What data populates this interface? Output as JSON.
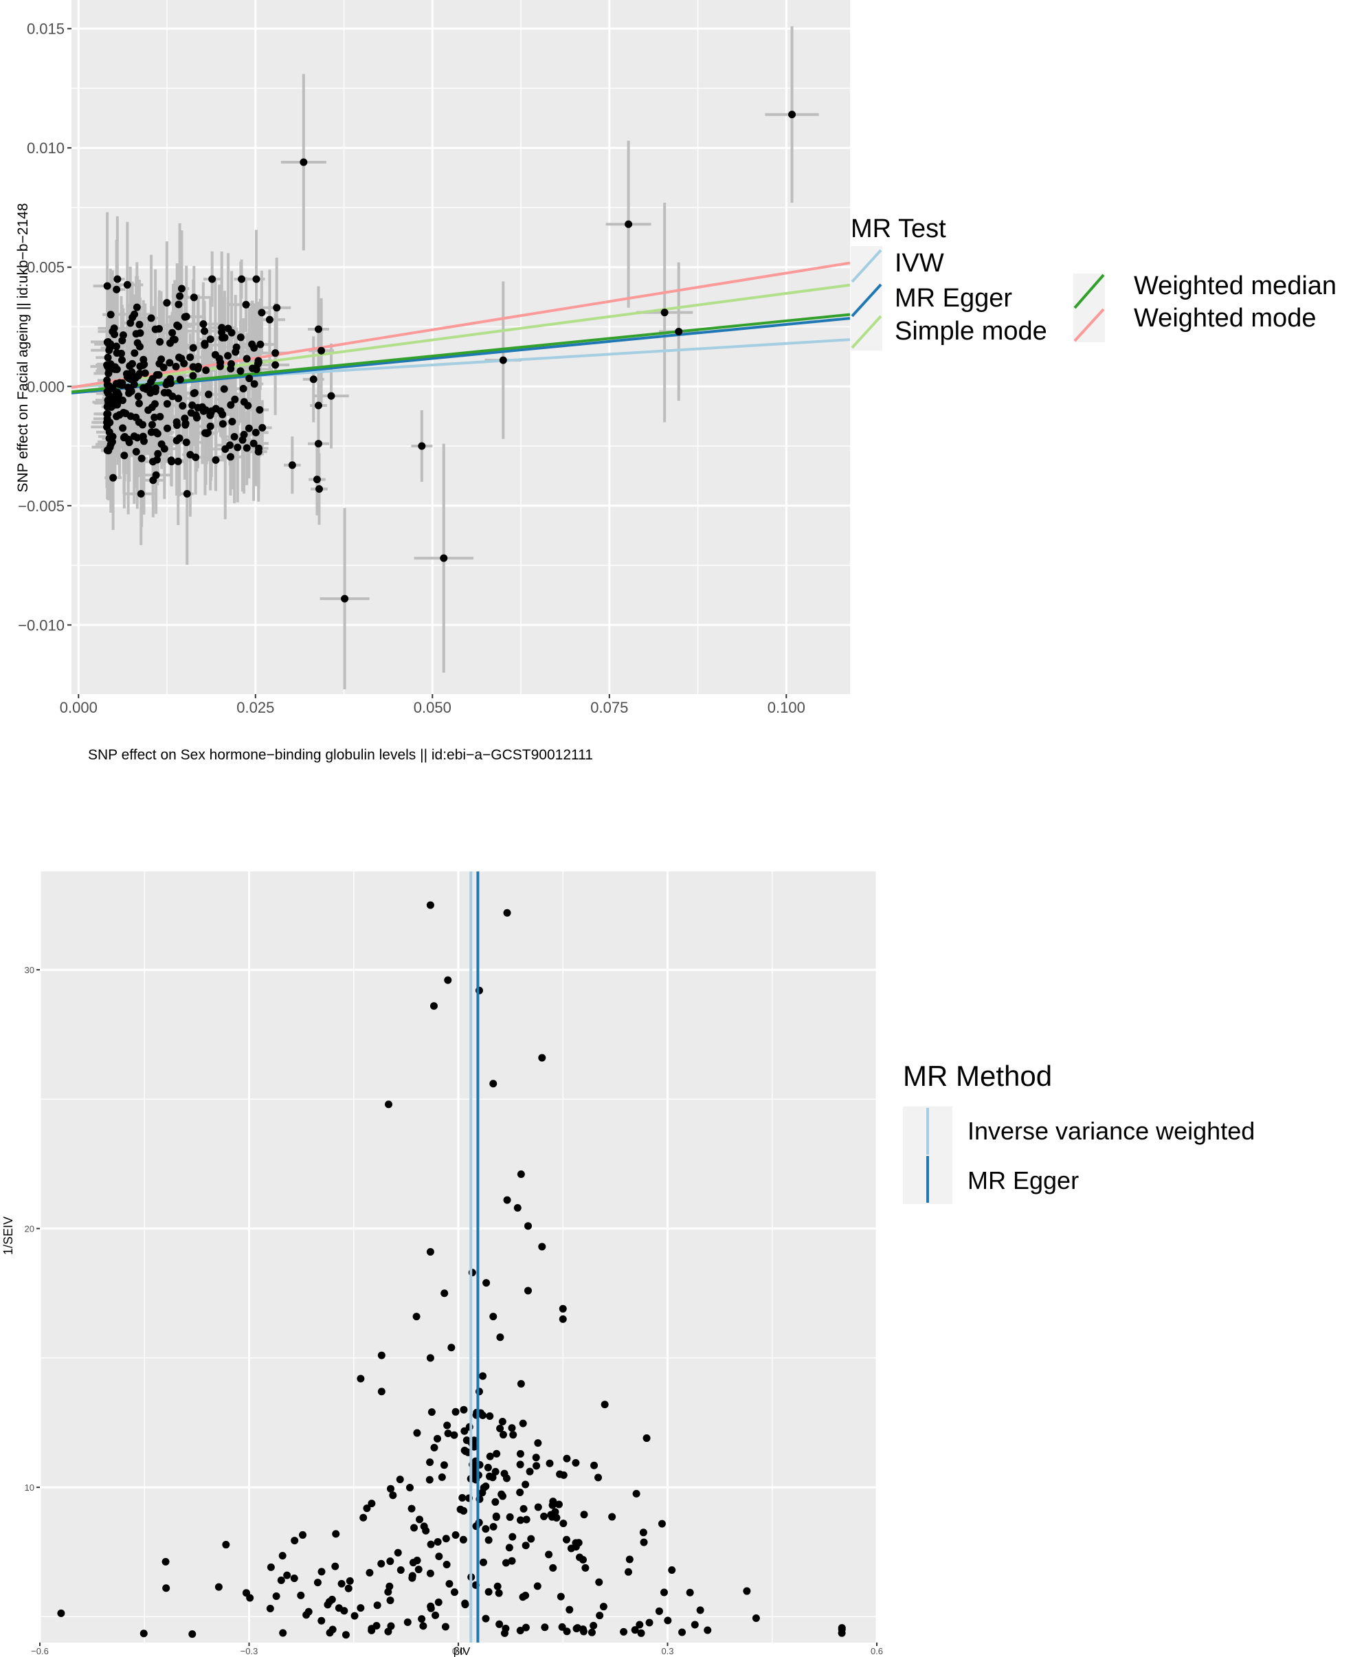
{
  "colors": {
    "panel_bg": "#EBEBEB",
    "grid": "#FFFFFF",
    "ivw": "#A6CEE3",
    "egger": "#1F78B4",
    "simple_mode": "#B2DF8A",
    "weighted_median": "#33A02C",
    "weighted_mode": "#FB9A99",
    "points": "#000000",
    "errorbars": "#BDBDBD"
  },
  "chart_data": [
    {
      "type": "scatter",
      "title": "",
      "xlabel": "SNP effect on Sex hormone−binding globulin levels || id:ebi−a−GCST90012111",
      "ylabel": "SNP effect on Facial ageing || id:ukb−b−2148",
      "xlim": [
        -0.001,
        0.109
      ],
      "ylim": [
        -0.0129,
        0.0162
      ],
      "x_ticks": [
        0,
        0.025,
        0.05,
        0.075,
        0.1
      ],
      "x_tick_labels": [
        "0.000",
        "0.025",
        "0.050",
        "0.075",
        "0.100"
      ],
      "y_ticks": [
        -0.01,
        -0.005,
        0,
        0.005,
        0.01,
        0.015
      ],
      "y_tick_labels": [
        "−0.010",
        "−0.005",
        "0.000",
        "0.005",
        "0.010",
        "0.015"
      ],
      "legend_title": "MR Test",
      "legend_position": "right",
      "legend_entries": [
        "IVW",
        "MR Egger",
        "Simple mode",
        "Weighted median",
        "Weighted mode"
      ],
      "regression_lines": [
        {
          "name": "IVW",
          "intercept": 0,
          "slope": 0.018,
          "color_key": "ivw"
        },
        {
          "name": "MR Egger",
          "intercept": -0.00025,
          "slope": 0.0285,
          "color_key": "egger"
        },
        {
          "name": "Simple mode",
          "intercept": 0,
          "slope": 0.039,
          "color_key": "simple_mode"
        },
        {
          "name": "Weighted median",
          "intercept": -0.0002,
          "slope": 0.0295,
          "color_key": "weighted_median"
        },
        {
          "name": "Weighted mode",
          "intercept": 0,
          "slope": 0.0475,
          "color_key": "weighted_mode"
        }
      ],
      "outlier_points": [
        {
          "x": 0.1008,
          "y": 0.0114,
          "se_x": 0.0038,
          "se_y": 0.0037
        },
        {
          "x": 0.0318,
          "y": 0.0094,
          "se_x": 0.0032,
          "se_y": 0.0037
        },
        {
          "x": 0.0777,
          "y": 0.0068,
          "se_x": 0.0032,
          "se_y": 0.0035
        },
        {
          "x": 0.0828,
          "y": 0.0031,
          "se_x": 0.004,
          "se_y": 0.0046
        },
        {
          "x": 0.0848,
          "y": 0.0023,
          "se_x": 0.0028,
          "se_y": 0.0029
        },
        {
          "x": 0.06,
          "y": 0.0011,
          "se_x": 0.0026,
          "se_y": 0.0033
        },
        {
          "x": 0.0516,
          "y": -0.0072,
          "se_x": 0.0042,
          "se_y": 0.0048
        },
        {
          "x": 0.0376,
          "y": -0.0089,
          "se_x": 0.0035,
          "se_y": 0.0038
        },
        {
          "x": 0.0485,
          "y": -0.0025,
          "se_x": 0.0015,
          "se_y": 0.0015
        },
        {
          "x": 0.0343,
          "y": 0.0015,
          "se_x": 0.0018,
          "se_y": 0.0022
        },
        {
          "x": 0.0339,
          "y": 0.0024,
          "se_x": 0.0015,
          "se_y": 0.0018
        },
        {
          "x": 0.0357,
          "y": -0.0004,
          "se_x": 0.0025,
          "se_y": 0.0022
        },
        {
          "x": 0.0332,
          "y": 0.0003,
          "se_x": 0.0015,
          "se_y": 0.0018
        },
        {
          "x": 0.0302,
          "y": -0.0033,
          "se_x": 0.0012,
          "se_y": 0.0012
        },
        {
          "x": 0.0339,
          "y": -0.0024,
          "se_x": 0.0015,
          "se_y": 0.0022
        },
        {
          "x": 0.0337,
          "y": -0.0039,
          "se_x": 0.0012,
          "se_y": 0.0015
        },
        {
          "x": 0.034,
          "y": -0.0043,
          "se_x": 0.0012,
          "se_y": 0.0015
        },
        {
          "x": 0.0339,
          "y": -0.0008,
          "se_x": 0.0012,
          "se_y": 0.0015
        },
        {
          "x": 0.027,
          "y": 0.0028,
          "se_x": 0.0022,
          "se_y": 0.0021
        },
        {
          "x": 0.0278,
          "y": 0.0009,
          "se_x": 0.002,
          "se_y": 0.0021
        },
        {
          "x": 0.028,
          "y": 0.0033,
          "se_x": 0.002,
          "se_y": 0.0021
        },
        {
          "x": 0.0278,
          "y": 0.0014,
          "se_x": 0.002,
          "se_y": 0.0021
        }
      ],
      "cluster": {
        "n_points": 300,
        "x_range": [
          0.004,
          0.026
        ],
        "y_center": 0,
        "y_sd": 0.0018,
        "seed": 7
      }
    },
    {
      "type": "scatter",
      "title": "",
      "xlabel": "βIV",
      "ylabel": "1/SEIV",
      "xlim": [
        -0.6,
        0.6
      ],
      "ylim": [
        4.0,
        33.8
      ],
      "x_ticks": [
        -0.6,
        -0.3,
        0,
        0.3,
        0.6
      ],
      "x_tick_labels": [
        "−0.6",
        "−0.3",
        "0.0",
        "0.3",
        "0.6"
      ],
      "y_ticks": [
        10,
        20,
        30
      ],
      "y_tick_labels": [
        "10",
        "20",
        "30"
      ],
      "legend_title": "MR Method",
      "legend_position": "right",
      "legend_entries": [
        "Inverse variance weighted",
        "MR Egger"
      ],
      "vertical_lines": [
        {
          "name": "Inverse variance weighted",
          "x": 0.018,
          "color_key": "ivw"
        },
        {
          "name": "MR Egger",
          "x": 0.028,
          "color_key": "egger"
        }
      ],
      "highlight_points": [
        {
          "x": -0.04,
          "y": 32.5
        },
        {
          "x": 0.07,
          "y": 32.2
        },
        {
          "x": -0.015,
          "y": 29.6
        },
        {
          "x": 0.03,
          "y": 29.2
        },
        {
          "x": -0.035,
          "y": 28.6
        },
        {
          "x": 0.12,
          "y": 26.6
        },
        {
          "x": 0.05,
          "y": 25.6
        },
        {
          "x": -0.1,
          "y": 24.8
        },
        {
          "x": 0.09,
          "y": 22.1
        },
        {
          "x": 0.07,
          "y": 21.1
        },
        {
          "x": 0.085,
          "y": 20.8
        },
        {
          "x": 0.1,
          "y": 20.1
        },
        {
          "x": 0.12,
          "y": 19.3
        },
        {
          "x": -0.04,
          "y": 19.1
        },
        {
          "x": 0.02,
          "y": 18.3
        },
        {
          "x": 0.04,
          "y": 17.9
        },
        {
          "x": 0.1,
          "y": 17.6
        },
        {
          "x": -0.02,
          "y": 17.5
        },
        {
          "x": 0.15,
          "y": 16.9
        },
        {
          "x": 0.15,
          "y": 16.5
        },
        {
          "x": 0.05,
          "y": 16.6
        },
        {
          "x": -0.06,
          "y": 16.6
        },
        {
          "x": 0.06,
          "y": 15.8
        },
        {
          "x": -0.01,
          "y": 15.4
        },
        {
          "x": -0.04,
          "y": 15.0
        },
        {
          "x": -0.11,
          "y": 15.1
        },
        {
          "x": 0.035,
          "y": 14.3
        },
        {
          "x": -0.14,
          "y": 14.2
        },
        {
          "x": 0.09,
          "y": 14.0
        },
        {
          "x": 0.03,
          "y": 13.7
        },
        {
          "x": -0.11,
          "y": 13.7
        },
        {
          "x": 0.21,
          "y": 13.2
        },
        {
          "x": 0.27,
          "y": 11.9
        }
      ],
      "cloud": {
        "n_points": 260,
        "y_range": [
          4.3,
          13.0
        ],
        "seed": 11
      }
    }
  ]
}
